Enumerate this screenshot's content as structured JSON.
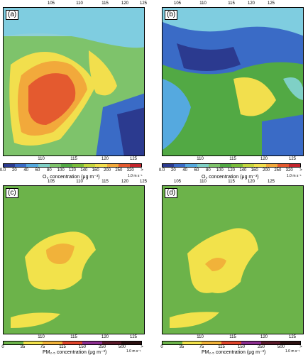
{
  "panels": [
    {
      "label": "(a)",
      "colorbar": "o3"
    },
    {
      "label": "(b)",
      "colorbar": "o3"
    },
    {
      "label": "(c)",
      "colorbar": "pm"
    },
    {
      "label": "(d)",
      "colorbar": "pm"
    }
  ],
  "axis": {
    "top_ticks": [
      "105",
      "110",
      "115",
      "120",
      "125"
    ],
    "bottom_ticks": [
      "110",
      "115",
      "120",
      "125"
    ],
    "lat_ticks": [
      "20",
      "25",
      "30",
      "35",
      "40",
      "45"
    ]
  },
  "o3_colorbar": {
    "ticks": [
      "0.0",
      "20",
      "40",
      "60",
      "80",
      "100",
      "120",
      "140",
      "160",
      "200",
      "250",
      "320",
      ">"
    ],
    "title": "O₃ concentration (μg m⁻³)",
    "colors": [
      "#2b3a8f",
      "#3a6bc6",
      "#55a9df",
      "#7fd0c6",
      "#7ec36b",
      "#52a944",
      "#7bbd3a",
      "#c4d63f",
      "#f2df4d",
      "#f2a93b",
      "#e45a2f",
      "#c3242c"
    ]
  },
  "pm_colorbar": {
    "ticks": [
      "0",
      "35",
      "75",
      "115",
      "150",
      "250",
      "500",
      ">"
    ],
    "title": "PM₂.₅ concentration (μg m⁻³)",
    "colors": [
      "#6cb34a",
      "#f2e24b",
      "#f1b23a",
      "#e0462c",
      "#8c2e8f",
      "#5a1a2a",
      "#2b1010"
    ]
  },
  "scale_label": "1.0 m s⁻¹"
}
